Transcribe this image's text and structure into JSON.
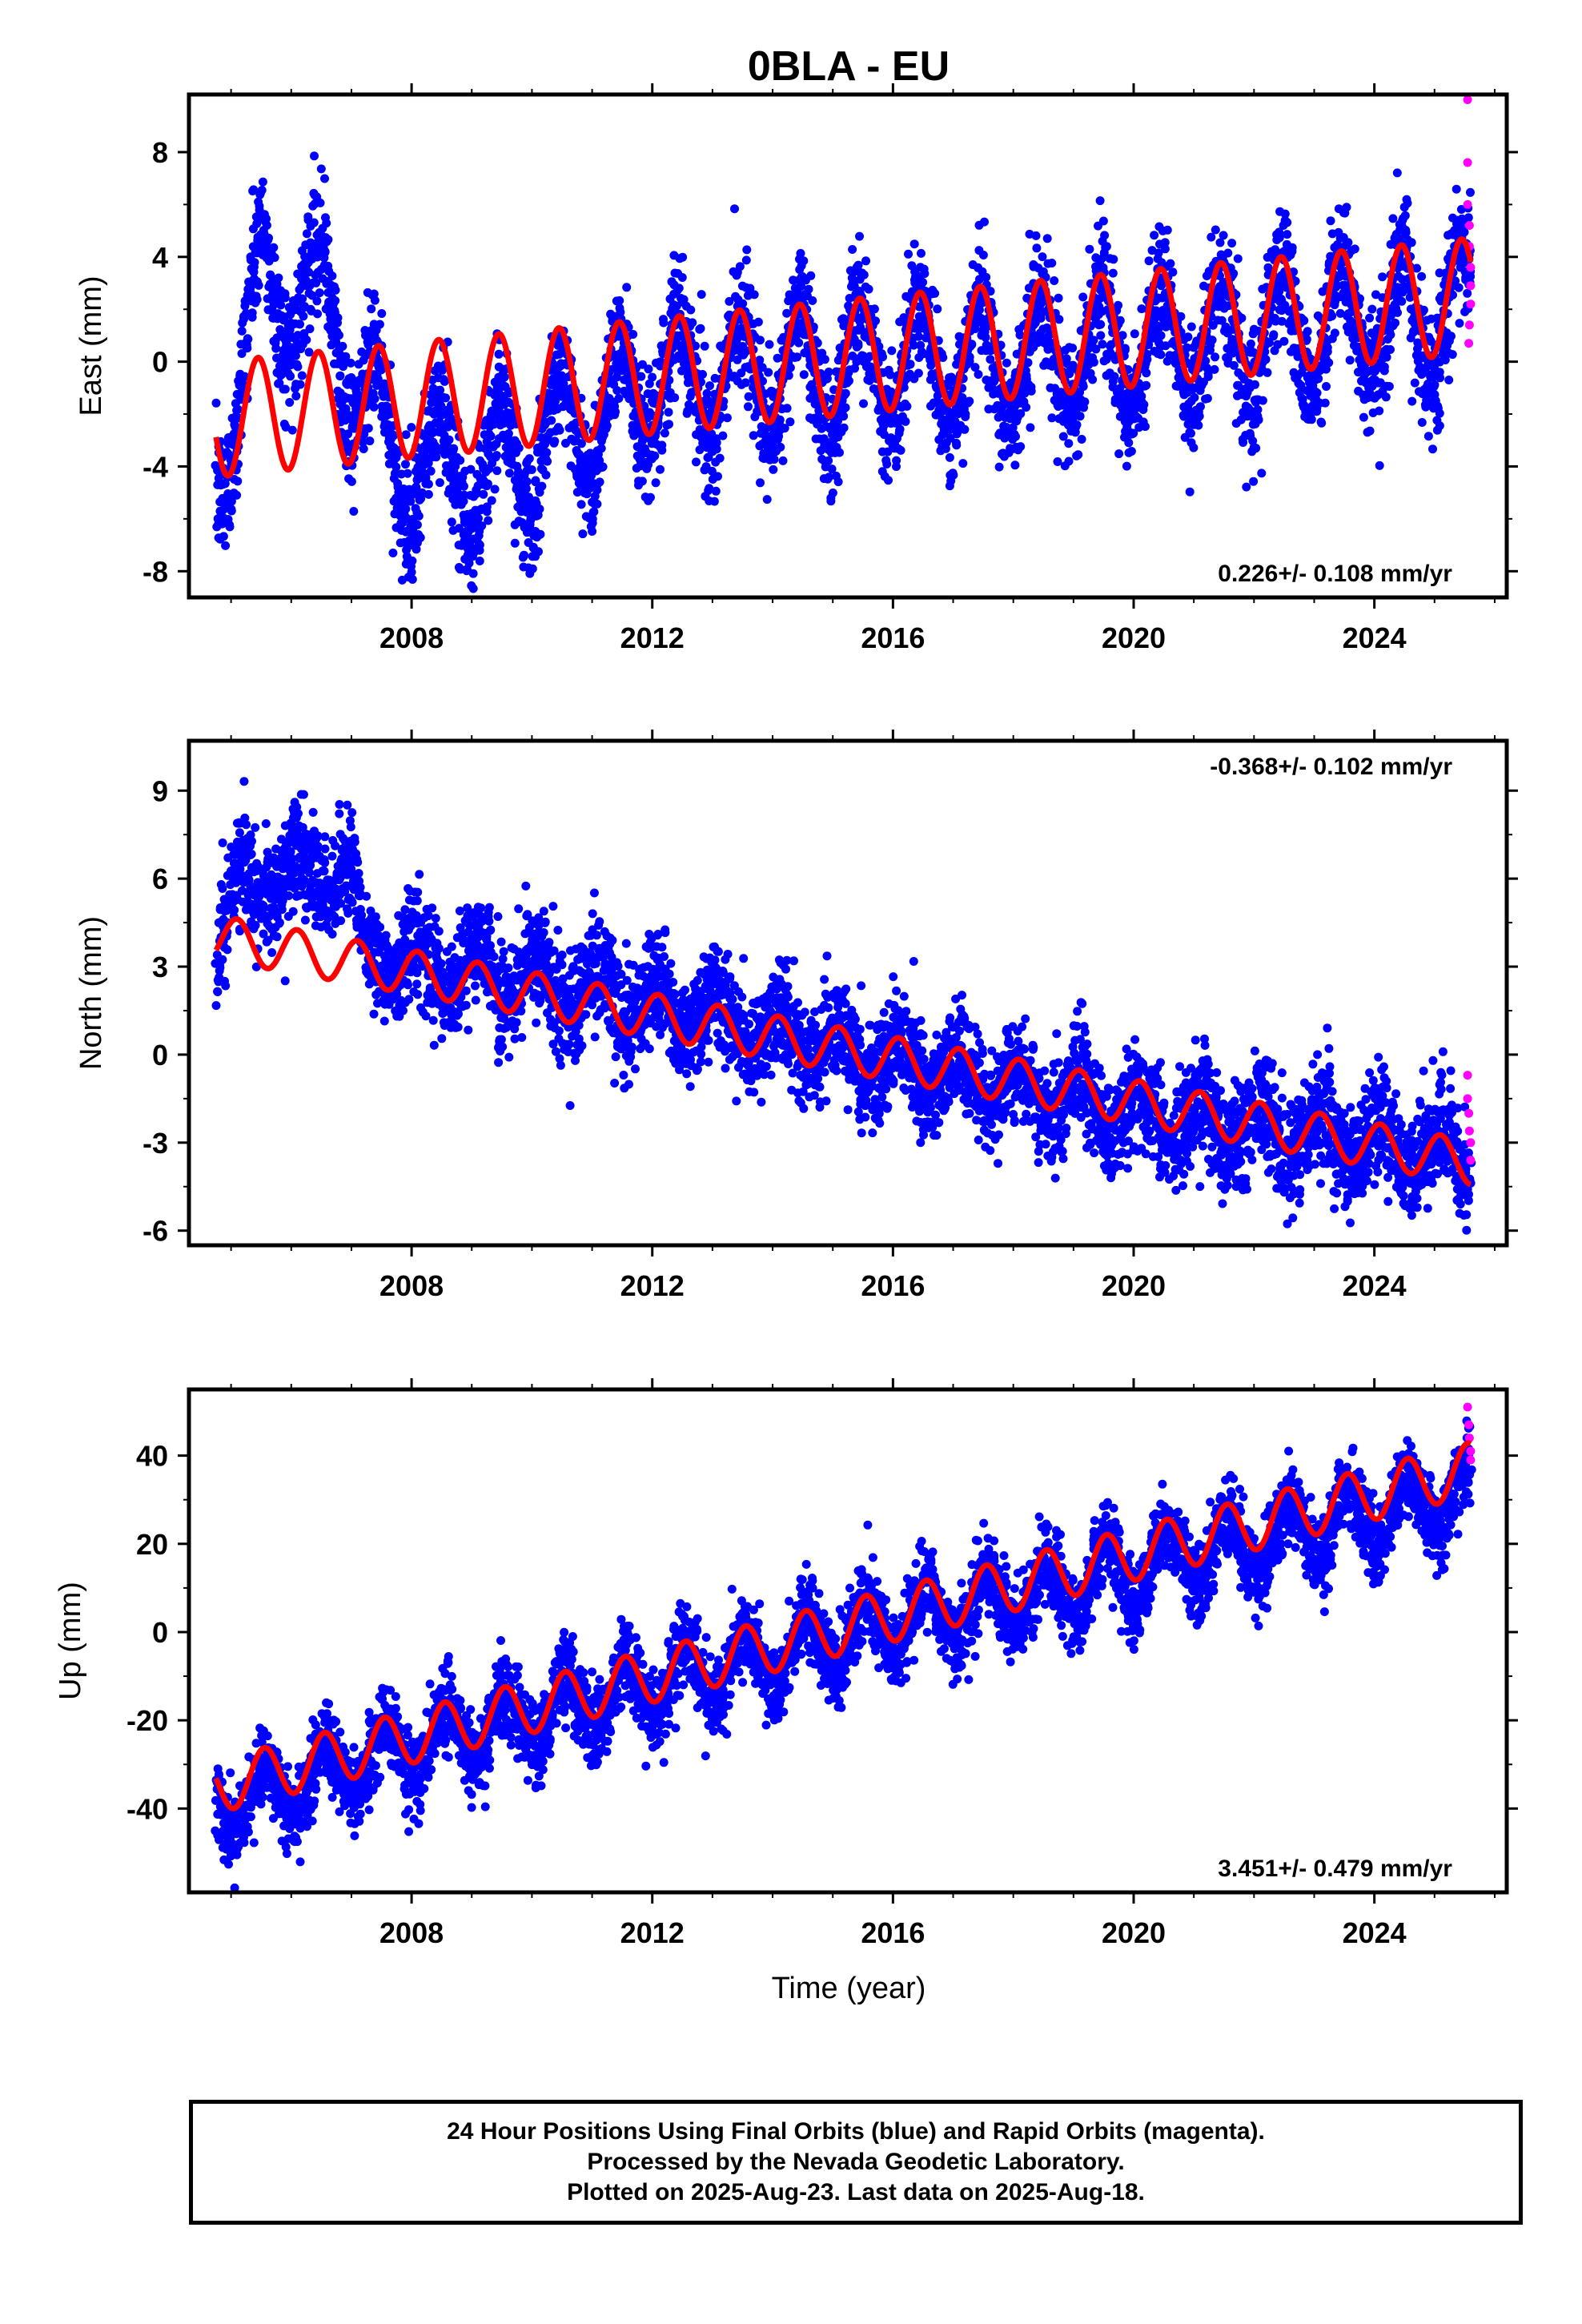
{
  "title": "0BLA - EU",
  "colors": {
    "final": "#0000ff",
    "rapid": "#ff00ff",
    "model": "#ff0000"
  },
  "chart_data": [
    {
      "type": "scatter",
      "panel": "east",
      "ylabel": "East (mm)",
      "xlabel": "",
      "xlim": [
        2004.3,
        2026.2
      ],
      "ylim": [
        -9,
        10.2
      ],
      "yticks": [
        -8,
        -4,
        0,
        4,
        8
      ],
      "xticks": [
        2008,
        2012,
        2016,
        2020,
        2024
      ],
      "grid": false,
      "rate_label": "0.226+/- 0.108 mm/yr",
      "rate_position": "bottom-right",
      "model": {
        "start_year": 2004.75,
        "end_year": 2025.6,
        "offset": -2.2,
        "rate": 0.226,
        "amplitude": 2.2,
        "peak_phase": 0.45
      },
      "scatter": {
        "centers": [
          [
            2004.75,
            -4.2
          ],
          [
            2005.5,
            2.8
          ],
          [
            2006.5,
            2.5
          ],
          [
            2007.7,
            -3.8
          ],
          [
            2009,
            -4.5
          ],
          [
            2012,
            -0.8
          ],
          [
            2016,
            -0.2
          ],
          [
            2020,
            0.5
          ],
          [
            2025.6,
            2.0
          ]
        ],
        "amplitude": 2.3,
        "spread": 1.2
      },
      "rapid_points": [
        [
          2025.55,
          10.0
        ],
        [
          2025.55,
          7.6
        ],
        [
          2025.55,
          6.0
        ],
        [
          2025.58,
          5.2
        ],
        [
          2025.58,
          4.4
        ],
        [
          2025.6,
          3.6
        ],
        [
          2025.6,
          2.9
        ],
        [
          2025.6,
          2.2
        ],
        [
          2025.58,
          1.4
        ],
        [
          2025.57,
          0.7
        ]
      ]
    },
    {
      "type": "scatter",
      "panel": "north",
      "ylabel": "North (mm)",
      "xlabel": "",
      "xlim": [
        2004.3,
        2026.2
      ],
      "ylim": [
        -6.5,
        10.7
      ],
      "yticks": [
        -6,
        -3,
        0,
        3,
        6,
        9
      ],
      "xticks": [
        2008,
        2012,
        2016,
        2020,
        2024
      ],
      "grid": false,
      "rate_label": "-0.368+/- 0.102 mm/yr",
      "rate_position": "top-right",
      "model": {
        "start_year": 2004.75,
        "end_year": 2025.6,
        "offset": 4.0,
        "rate": -0.368,
        "amplitude": 0.75,
        "peak_phase": 0.1
      },
      "scatter": {
        "centers": [
          [
            2004.75,
            3.5
          ],
          [
            2005.2,
            6.0
          ],
          [
            2007.0,
            6.2
          ],
          [
            2007.2,
            3.5
          ],
          [
            2012,
            1.8
          ],
          [
            2016,
            -0.3
          ],
          [
            2020,
            -2.0
          ],
          [
            2025.6,
            -3.5
          ]
        ],
        "amplitude": 0.8,
        "spread": 0.9
      },
      "rapid_points": [
        [
          2025.55,
          -0.7
        ],
        [
          2025.55,
          -1.5
        ],
        [
          2025.57,
          -2.0
        ],
        [
          2025.58,
          -2.6
        ],
        [
          2025.6,
          -3.0
        ],
        [
          2025.6,
          -3.6
        ]
      ]
    },
    {
      "type": "scatter",
      "panel": "up",
      "ylabel": "Up (mm)",
      "xlabel": "Time (year)",
      "xlim": [
        2004.3,
        2026.2
      ],
      "ylim": [
        -59,
        55
      ],
      "yticks": [
        -40,
        -20,
        0,
        20,
        40
      ],
      "xticks": [
        2008,
        2012,
        2016,
        2020,
        2024
      ],
      "grid": false,
      "rate_label": "3.451+/- 0.479 mm/yr",
      "rate_position": "bottom-right",
      "model": {
        "start_year": 2004.75,
        "end_year": 2025.6,
        "offset": -35,
        "rate": 3.451,
        "amplitude": 6,
        "peak_phase": 0.55
      },
      "scatter": {
        "centers": [
          [
            2004.75,
            -40
          ],
          [
            2008,
            -26
          ],
          [
            2012,
            -12
          ],
          [
            2016,
            2
          ],
          [
            2020,
            14
          ],
          [
            2025.6,
            32
          ]
        ],
        "amplitude": 7,
        "spread": 4.5
      },
      "rapid_points": [
        [
          2025.55,
          51
        ],
        [
          2025.57,
          47
        ],
        [
          2025.58,
          44
        ],
        [
          2025.6,
          41
        ],
        [
          2025.6,
          39
        ]
      ]
    }
  ],
  "footer": {
    "line1": "24 Hour Positions Using Final Orbits (blue) and Rapid Orbits (magenta).",
    "line2": "Processed by the Nevada Geodetic Laboratory.",
    "line3": "Plotted on 2025-Aug-23. Last data on 2025-Aug-18."
  }
}
